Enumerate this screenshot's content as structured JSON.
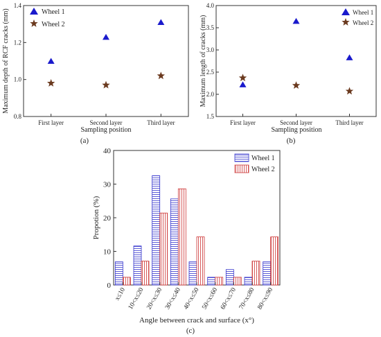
{
  "chart_data": [
    {
      "type": "scatter",
      "panel_label": "(a)",
      "xlabel": "Sampling position",
      "ylabel": "Maximum depth of RCF cracks (mm)",
      "categories": [
        "First layer",
        "Second layer",
        "Third layer"
      ],
      "ylim": [
        0.8,
        1.4
      ],
      "yticks": [
        "0.8",
        "1.0",
        "1.2",
        "1.4"
      ],
      "legend_position": "top-left",
      "series": [
        {
          "name": "Wheel 1",
          "marker": "triangle",
          "color": "#1a1acc",
          "values": [
            1.1,
            1.23,
            1.31
          ]
        },
        {
          "name": "Wheel 2",
          "marker": "star",
          "color": "#6b3a1f",
          "values": [
            0.98,
            0.97,
            1.02
          ]
        }
      ]
    },
    {
      "type": "scatter",
      "panel_label": "(b)",
      "xlabel": "Sampling position",
      "ylabel": "Maximum length of cracks (mm)",
      "categories": [
        "First layer",
        "Second layer",
        "Third layer"
      ],
      "ylim": [
        1.5,
        4.0
      ],
      "yticks": [
        "1.5",
        "2.0",
        "2.5",
        "3.0",
        "3.5",
        "4.0"
      ],
      "legend_position": "top-right",
      "series": [
        {
          "name": "Wheel 1",
          "marker": "triangle",
          "color": "#1a1acc",
          "values": [
            2.22,
            3.65,
            2.83
          ]
        },
        {
          "name": "Wheel 2",
          "marker": "star",
          "color": "#6b3a1f",
          "values": [
            2.37,
            2.2,
            2.07
          ]
        }
      ]
    },
    {
      "type": "bar",
      "panel_label": "(c)",
      "xlabel": "Angle between crack and surface (x°)",
      "ylabel": "Propotion (%)",
      "categories": [
        "x≤10",
        "10<x≤20",
        "20<x≤30",
        "30<x≤40",
        "40<x≤50",
        "50<x≤60",
        "60<x≤70",
        "70<x≤80",
        "80<x≤90"
      ],
      "ylim": [
        0,
        40
      ],
      "yticks": [
        "0",
        "10",
        "20",
        "30",
        "40"
      ],
      "legend_position": "top-right",
      "series": [
        {
          "name": "Wheel 1",
          "color": "#3333cc",
          "hatch": "horizontal",
          "values": [
            6.9,
            11.6,
            32.5,
            25.6,
            6.9,
            2.3,
            4.6,
            2.3,
            6.9
          ]
        },
        {
          "name": "Wheel 2",
          "color": "#cc3333",
          "hatch": "vertical",
          "values": [
            2.3,
            7.1,
            21.4,
            28.6,
            14.3,
            2.3,
            2.3,
            7.1,
            14.3
          ]
        }
      ]
    }
  ]
}
